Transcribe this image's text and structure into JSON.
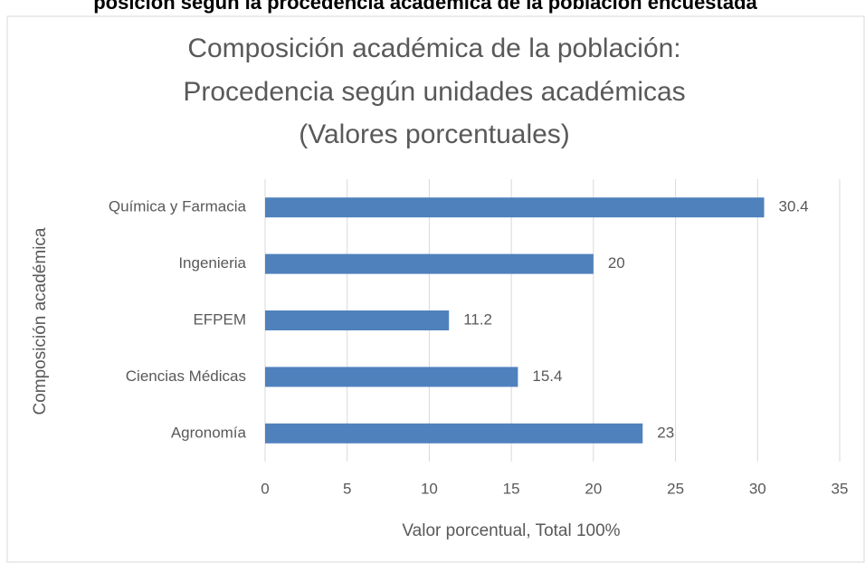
{
  "heading": "posición según la procedencia académica de la población encuestada",
  "chart_data": {
    "type": "bar",
    "orientation": "horizontal",
    "title": [
      "Composición académica de la población:",
      "Procedencia según unidades académicas",
      "(Valores porcentuales)"
    ],
    "x_label": "Valor porcentual, Total 100%",
    "y_label": "Composición académica",
    "categories": [
      "Química y Farmacia",
      "Ingenieria",
      "EFPEM",
      "Ciencias Médicas",
      "Agronomía"
    ],
    "values": [
      30.4,
      20,
      11.2,
      15.4,
      23
    ],
    "color": "#4f81bd",
    "xlim": [
      0,
      35
    ],
    "xticks": [
      0,
      5,
      10,
      15,
      20,
      25,
      30,
      35
    ],
    "grid": true
  }
}
